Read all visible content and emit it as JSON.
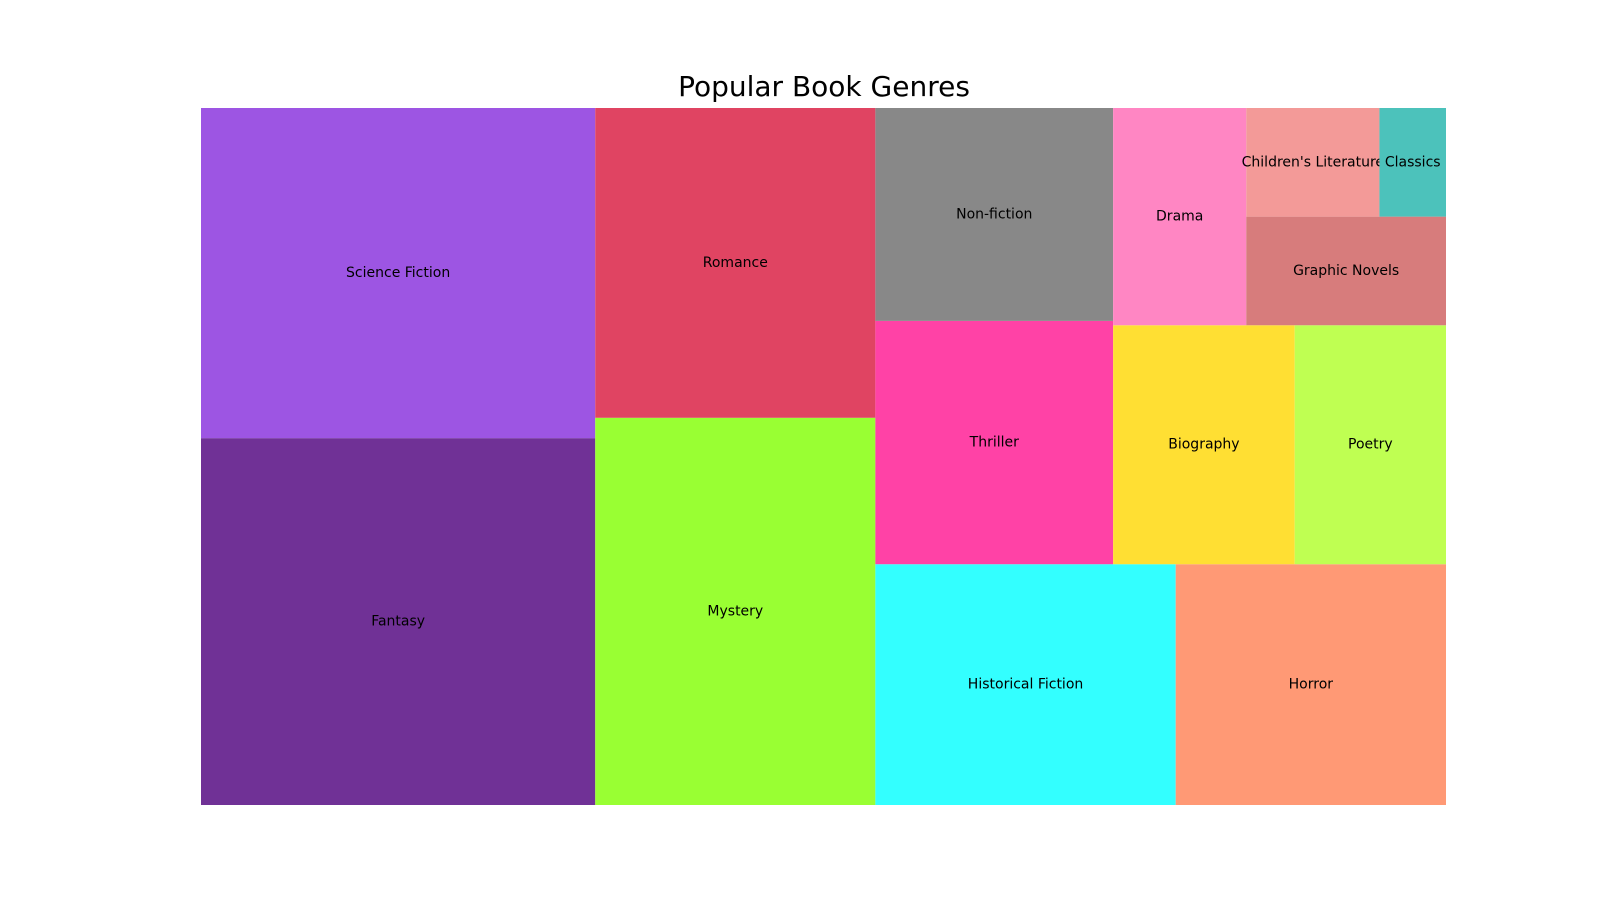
{
  "chart_data": {
    "type": "treemap",
    "title": "Popular Book Genres",
    "items": [
      {
        "label": "Fantasy",
        "value": 15,
        "color": "#703196"
      },
      {
        "label": "Science Fiction",
        "value": 13.5,
        "color": "#9d55e3"
      },
      {
        "label": "Mystery",
        "value": 11.25,
        "color": "#99ff33"
      },
      {
        "label": "Romance",
        "value": 9,
        "color": "#e04462"
      },
      {
        "label": "Historical Fiction",
        "value": 7.5,
        "color": "#33ffff"
      },
      {
        "label": "Horror",
        "value": 6.75,
        "color": "#ff9975"
      },
      {
        "label": "Thriller",
        "value": 6,
        "color": "#ff42a6"
      },
      {
        "label": "Non-fiction",
        "value": 5.25,
        "color": "#888888"
      },
      {
        "label": "Biography",
        "value": 4.5,
        "color": "#ffdf33"
      },
      {
        "label": "Poetry",
        "value": 3.75,
        "color": "#bfff52"
      },
      {
        "label": "Drama",
        "value": 3,
        "color": "#ff86c3"
      },
      {
        "label": "Graphic Novels",
        "value": 2.25,
        "color": "#d77c7c"
      },
      {
        "label": "Children's Literature",
        "value": 1.5,
        "color": "#f39a98"
      },
      {
        "label": "Classics",
        "value": 0.75,
        "color": "#4cc2bb"
      }
    ]
  }
}
